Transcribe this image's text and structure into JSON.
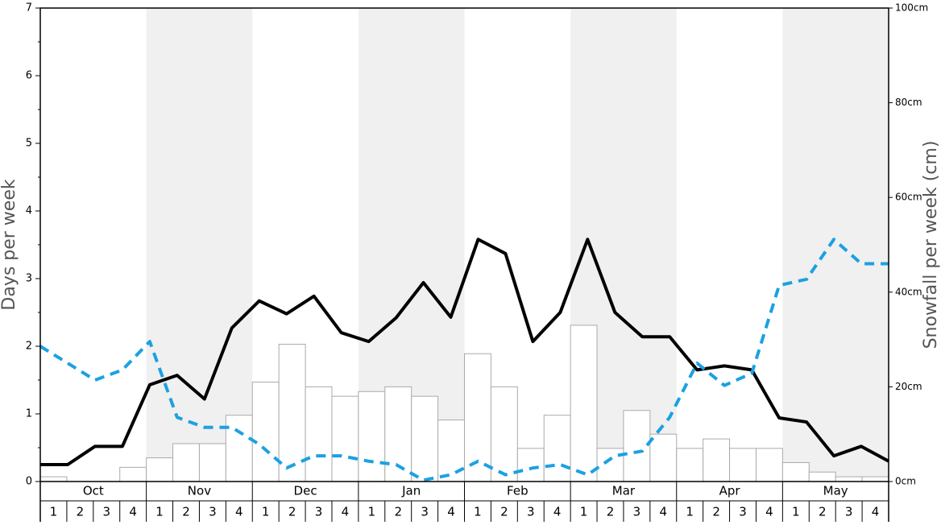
{
  "chart_data": {
    "type": "bar-line",
    "months": [
      "Oct",
      "Nov",
      "Dec",
      "Jan",
      "Feb",
      "Mar",
      "Apr",
      "May"
    ],
    "categories": [
      "1",
      "2",
      "3",
      "4",
      "1",
      "2",
      "3",
      "4",
      "1",
      "2",
      "3",
      "4",
      "1",
      "2",
      "3",
      "4",
      "1",
      "2",
      "3",
      "4",
      "1",
      "2",
      "3",
      "4",
      "1",
      "2",
      "3",
      "4",
      "1",
      "2",
      "3",
      "4"
    ],
    "ylabel": "Days per week",
    "y2label": "Snowfall per week (cm)",
    "ylim": [
      0,
      7
    ],
    "yticks": [
      0,
      1,
      2,
      3,
      4,
      5,
      6,
      7
    ],
    "y2lim": [
      0,
      100
    ],
    "y2ticks": [
      {
        "value": 0,
        "label": "0cm"
      },
      {
        "value": 20,
        "label": "20cm"
      },
      {
        "value": 40,
        "label": "40cm"
      },
      {
        "value": 60,
        "label": "60cm"
      },
      {
        "value": 80,
        "label": "80cm"
      },
      {
        "value": 100,
        "label": "100cm"
      }
    ],
    "series": [
      {
        "type": "bar",
        "axis": "y2",
        "color": "#ffffff",
        "values": [
          1,
          0,
          0,
          3,
          5,
          8,
          8,
          14,
          21,
          29,
          20,
          18,
          19,
          20,
          18,
          13,
          27,
          20,
          7,
          14,
          33,
          7,
          15,
          10,
          7,
          9,
          7,
          7,
          4,
          2,
          1,
          1
        ]
      },
      {
        "type": "line",
        "color": "#000000",
        "values": [
          0.25,
          0.25,
          0.52,
          0.52,
          1.43,
          1.57,
          1.22,
          2.27,
          2.67,
          2.48,
          2.74,
          2.2,
          2.07,
          2.42,
          2.94,
          2.43,
          3.58,
          3.37,
          2.07,
          2.5,
          3.58,
          2.5,
          2.14,
          2.14,
          1.65,
          1.71,
          1.65,
          0.94,
          0.88,
          0.38,
          0.52,
          0.3
        ]
      },
      {
        "type": "line",
        "dashed": true,
        "color": "#1ba1e2",
        "values": [
          2.0,
          1.75,
          1.5,
          1.65,
          2.07,
          0.95,
          0.8,
          0.8,
          0.55,
          0.2,
          0.38,
          0.38,
          0.3,
          0.25,
          0.02,
          0.1,
          0.3,
          0.1,
          0.2,
          0.25,
          0.1,
          0.38,
          0.45,
          0.95,
          1.75,
          1.42,
          1.6,
          2.9,
          2.99,
          3.58,
          3.22,
          3.22
        ]
      }
    ]
  }
}
